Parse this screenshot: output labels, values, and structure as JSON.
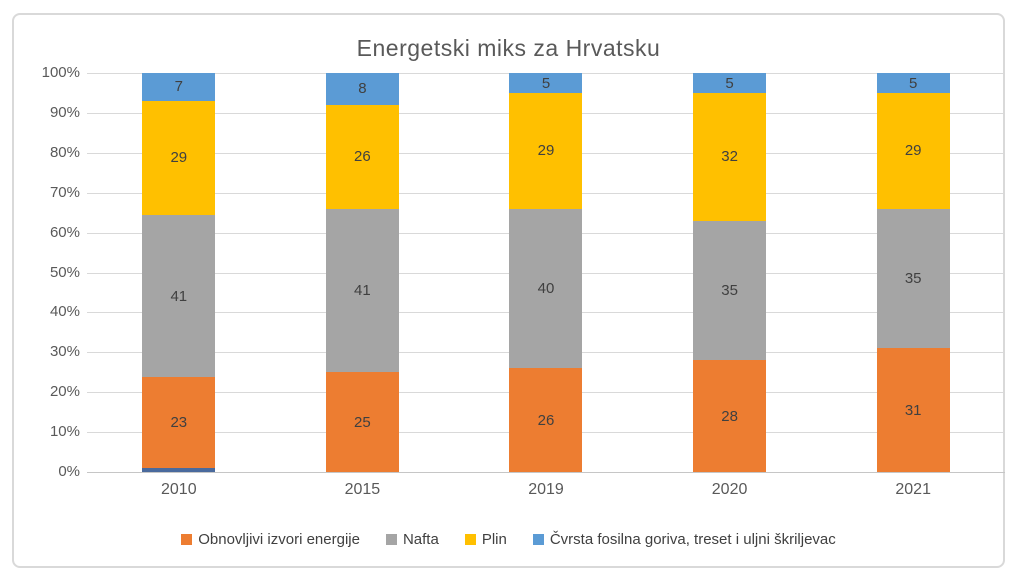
{
  "chart_data": {
    "type": "bar",
    "subtype": "stacked-100-percent",
    "title": "Energetski miks za Hrvatsku",
    "categories": [
      "2010",
      "2015",
      "2019",
      "2020",
      "2021"
    ],
    "series": [
      {
        "name": "unlabeled-bottom-sliver",
        "color": "#4a6a9d",
        "values": [
          1,
          0,
          0,
          0,
          0
        ],
        "in_legend": false,
        "show_labels": false
      },
      {
        "name": "Obnovljivi izvori energije",
        "color": "#ed7d31",
        "values": [
          23,
          25,
          26,
          28,
          31
        ],
        "in_legend": true,
        "show_labels": true
      },
      {
        "name": "Nafta",
        "color": "#a5a5a5",
        "values": [
          41,
          41,
          40,
          35,
          35
        ],
        "in_legend": true,
        "show_labels": true
      },
      {
        "name": "Plin",
        "color": "#ffc000",
        "values": [
          29,
          26,
          29,
          32,
          29
        ],
        "in_legend": true,
        "show_labels": true
      },
      {
        "name": "Čvrsta fosilna goriva, treset i uljni škriljevac",
        "color": "#5b9bd5",
        "values": [
          7,
          8,
          5,
          5,
          5
        ],
        "in_legend": true,
        "show_labels": true
      }
    ],
    "y_ticks": [
      "0%",
      "10%",
      "20%",
      "30%",
      "40%",
      "50%",
      "60%",
      "70%",
      "80%",
      "90%",
      "100%"
    ],
    "ylim": [
      0,
      100
    ],
    "grid": true,
    "legend_position": "bottom",
    "stack_order": "bottom-to-top as listed in series",
    "colors": {
      "title_text": "#595959",
      "axis_text": "#595959",
      "data_label_text": "#404040",
      "gridline": "#d9d9d9",
      "frame_border": "#d9d9d9",
      "background": "#ffffff"
    }
  }
}
